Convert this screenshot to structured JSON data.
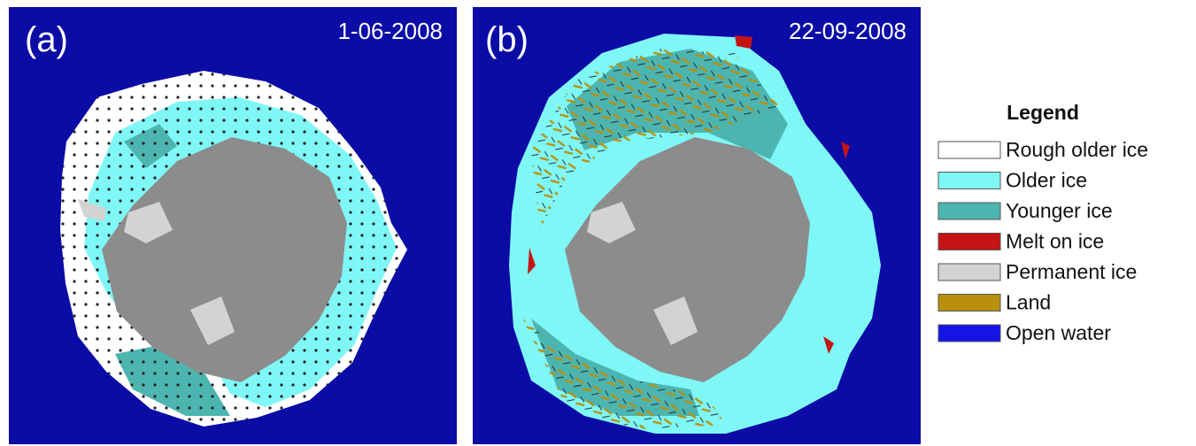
{
  "panels": [
    {
      "label": "(a)",
      "date": "1-06-2008"
    },
    {
      "label": "(b)",
      "date": "22-09-2008"
    }
  ],
  "legend": {
    "title": "Legend",
    "items": [
      {
        "label": "Rough older ice",
        "color": "#ffffff"
      },
      {
        "label": "Older ice",
        "color": "#7ff7f7"
      },
      {
        "label": "Younger ice",
        "color": "#4db5b0"
      },
      {
        "label": "Melt on ice",
        "color": "#c41414"
      },
      {
        "label": "Permanent ice",
        "color": "#d3d3d3"
      },
      {
        "label": "Land",
        "color": "#b8900e"
      },
      {
        "label": "Open water",
        "color": "#1414e6"
      }
    ]
  }
}
